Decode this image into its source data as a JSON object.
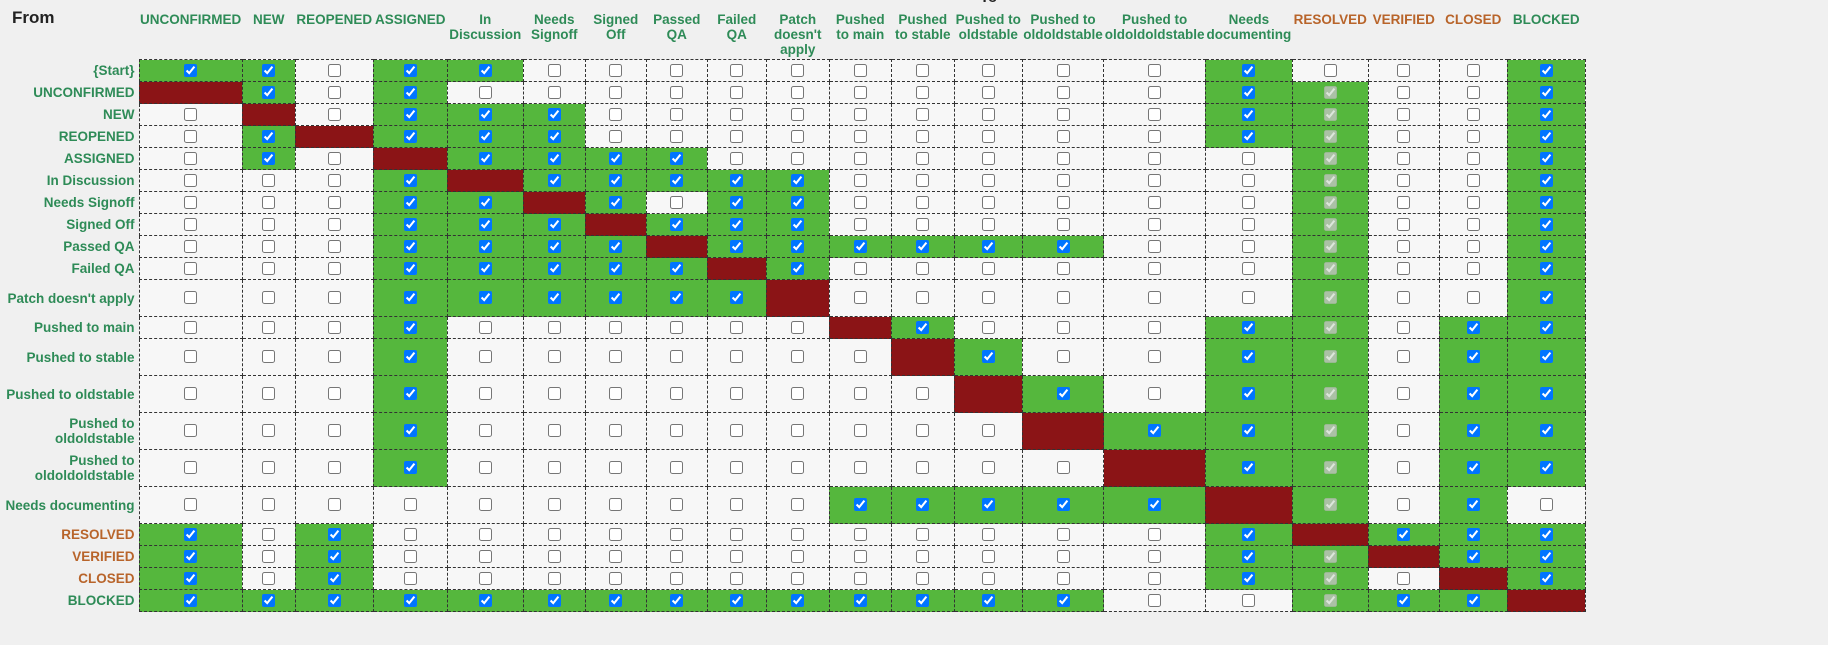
{
  "from_label": "From",
  "to_label_fragment": "To",
  "columns": [
    {
      "label": "UNCONFIRMED",
      "color": "#2e8b57"
    },
    {
      "label": "NEW",
      "color": "#2e8b57"
    },
    {
      "label": "REOPENED",
      "color": "#2e8b57"
    },
    {
      "label": "ASSIGNED",
      "color": "#2e8b57"
    },
    {
      "label": "In Discussion",
      "color": "#2e8b57"
    },
    {
      "label": "Needs Signoff",
      "color": "#2e8b57"
    },
    {
      "label": "Signed Off",
      "color": "#2e8b57"
    },
    {
      "label": "Passed QA",
      "color": "#2e8b57"
    },
    {
      "label": "Failed QA",
      "color": "#2e8b57"
    },
    {
      "label": "Patch doesn't apply",
      "color": "#2e8b57"
    },
    {
      "label": "Pushed to main",
      "color": "#2e8b57"
    },
    {
      "label": "Pushed to stable",
      "color": "#2e8b57"
    },
    {
      "label": "Pushed to oldstable",
      "color": "#2e8b57"
    },
    {
      "label": "Pushed to oldoldstable",
      "color": "#2e8b57"
    },
    {
      "label": "Pushed to oldoldoldstable",
      "color": "#2e8b57"
    },
    {
      "label": "Needs documenting",
      "color": "#2e8b57"
    },
    {
      "label": "RESOLVED",
      "color": "#b8642a"
    },
    {
      "label": "VERIFIED",
      "color": "#b8642a"
    },
    {
      "label": "CLOSED",
      "color": "#b8642a"
    },
    {
      "label": "BLOCKED",
      "color": "#2e8b57"
    }
  ],
  "legend": {
    "green_cell": "#55b73d",
    "self_cell": "#8b1416",
    "empty_cell": "#f7f7f7"
  },
  "rows": [
    {
      "label": "{Start}",
      "color": "#2e8b57",
      "cells": "11011000000000010001"
    },
    {
      "label": "UNCONFIRMED",
      "color": "#2e8b57",
      "cells": "S1010000000000012001"
    },
    {
      "label": "NEW",
      "color": "#2e8b57",
      "cells": "0S011100000000012001"
    },
    {
      "label": "REOPENED",
      "color": "#2e8b57",
      "cells": "01S11100000000012001"
    },
    {
      "label": "ASSIGNED",
      "color": "#2e8b57",
      "cells": "010S1111000000002001"
    },
    {
      "label": "In Discussion",
      "color": "#2e8b57",
      "cells": "0001S111110000002001"
    },
    {
      "label": "Needs Signoff",
      "color": "#2e8b57",
      "cells": "00011S10110000002001"
    },
    {
      "label": "Signed Off",
      "color": "#2e8b57",
      "cells": "000111S1110000002001"
    },
    {
      "label": "Passed QA",
      "color": "#2e8b57",
      "cells": "0001111S111111002001"
    },
    {
      "label": "Failed QA",
      "color": "#2e8b57",
      "cells": "00011111S10000002001"
    },
    {
      "label": "Patch doesn't apply",
      "color": "#2e8b57",
      "cells": "000111111S0000002001"
    },
    {
      "label": "Pushed to main",
      "color": "#2e8b57",
      "cells": "0001000000S100012011"
    },
    {
      "label": "Pushed to stable",
      "color": "#2e8b57",
      "cells": "00010000000S10012011"
    },
    {
      "label": "Pushed to oldstable",
      "color": "#2e8b57",
      "cells": "000100000000S1012011"
    },
    {
      "label": "Pushed to oldoldstable",
      "color": "#2e8b57",
      "cells": "0001000000000S112011"
    },
    {
      "label": "Pushed to oldoldoldstable",
      "color": "#2e8b57",
      "cells": "00010000000000S12011"
    },
    {
      "label": "Needs documenting",
      "color": "#2e8b57",
      "cells": "000000000011111S2010"
    },
    {
      "label": "RESOLVED",
      "color": "#b8642a",
      "cells": "1010000000000001S111"
    },
    {
      "label": "VERIFIED",
      "color": "#b8642a",
      "cells": "10100000000000012S11"
    },
    {
      "label": "CLOSED",
      "color": "#b8642a",
      "cells": "101000000000000120S1"
    },
    {
      "label": "BLOCKED",
      "color": "#2e8b57",
      "cells": "1111111111111100211S"
    }
  ]
}
